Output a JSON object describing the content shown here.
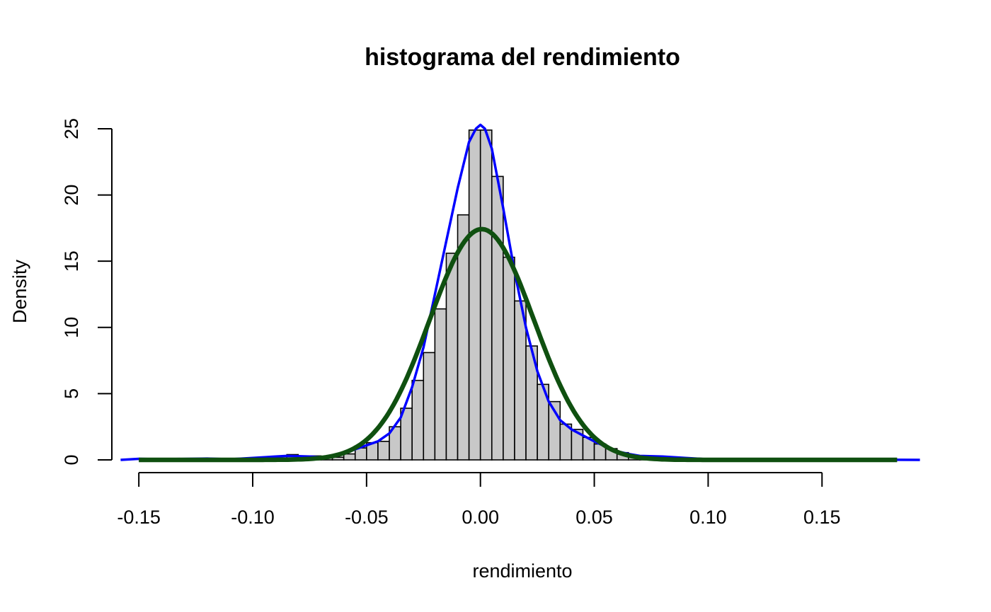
{
  "chart_data": {
    "type": "bar",
    "title": "histograma del rendimiento",
    "xlabel": "rendimiento",
    "ylabel": "Density",
    "xlim": [
      -0.1575,
      0.1925
    ],
    "ylim": [
      0,
      25.8
    ],
    "xticks": [
      "-0.15",
      "-0.10",
      "-0.05",
      "0.00",
      "0.05",
      "0.10",
      "0.15"
    ],
    "yticks": [
      "0",
      "5",
      "10",
      "15",
      "20",
      "25"
    ],
    "grid": false,
    "legend": "none",
    "bin_width": 0.005,
    "bar_color": "#c8c8c8",
    "histogram": {
      "bin_start": [
        -0.12,
        -0.115,
        -0.095,
        -0.09,
        -0.085,
        -0.08,
        -0.075,
        -0.07,
        -0.065,
        -0.06,
        -0.055,
        -0.05,
        -0.045,
        -0.04,
        -0.035,
        -0.03,
        -0.025,
        -0.02,
        -0.015,
        -0.01,
        -0.005,
        0.0,
        0.005,
        0.01,
        0.015,
        0.02,
        0.025,
        0.03,
        0.035,
        0.04,
        0.045,
        0.05,
        0.055,
        0.06,
        0.065,
        0.07,
        0.075,
        0.08,
        0.085,
        0.09
      ],
      "density": [
        0.1,
        0.1,
        0.15,
        0.15,
        0.4,
        0.2,
        0.3,
        0.2,
        0.2,
        0.45,
        0.9,
        1.3,
        1.4,
        2.5,
        3.9,
        6.0,
        8.1,
        11.4,
        15.6,
        18.5,
        24.9,
        24.9,
        21.4,
        15.3,
        12.0,
        8.6,
        5.7,
        4.4,
        2.7,
        2.3,
        1.7,
        1.2,
        0.85,
        0.55,
        0.3,
        0.2,
        0.1,
        0.1,
        0.1,
        0.1
      ]
    },
    "series": [
      {
        "type": "line",
        "color": "#0000ff",
        "x": [
          -0.158,
          -0.15,
          -0.14,
          -0.12,
          -0.11,
          -0.1,
          -0.09,
          -0.085,
          -0.08,
          -0.075,
          -0.07,
          -0.065,
          -0.06,
          -0.055,
          -0.05,
          -0.045,
          -0.04,
          -0.035,
          -0.03,
          -0.025,
          -0.02,
          -0.015,
          -0.01,
          -0.005,
          -0.002,
          0.0,
          0.002,
          0.005,
          0.01,
          0.015,
          0.02,
          0.025,
          0.03,
          0.035,
          0.04,
          0.045,
          0.05,
          0.055,
          0.06,
          0.065,
          0.07,
          0.08,
          0.09,
          0.1,
          0.12,
          0.15,
          0.17,
          0.193
        ],
        "y": [
          0.0,
          0.08,
          0.05,
          0.1,
          0.05,
          0.15,
          0.25,
          0.3,
          0.28,
          0.25,
          0.2,
          0.3,
          0.45,
          0.8,
          1.1,
          1.4,
          2.0,
          3.2,
          5.5,
          8.5,
          12.5,
          16.5,
          20.5,
          24.0,
          25.0,
          25.3,
          25.0,
          23.5,
          19.0,
          14.2,
          10.0,
          6.7,
          4.4,
          3.0,
          2.3,
          1.85,
          1.4,
          1.0,
          0.65,
          0.45,
          0.3,
          0.25,
          0.15,
          0.05,
          0.02,
          0.01,
          0.01,
          0.0
        ]
      },
      {
        "type": "line",
        "color": "#0f5010",
        "normal_mean": 0.0006,
        "normal_sd": 0.0229,
        "x_range": [
          -0.15,
          0.183
        ]
      }
    ]
  }
}
